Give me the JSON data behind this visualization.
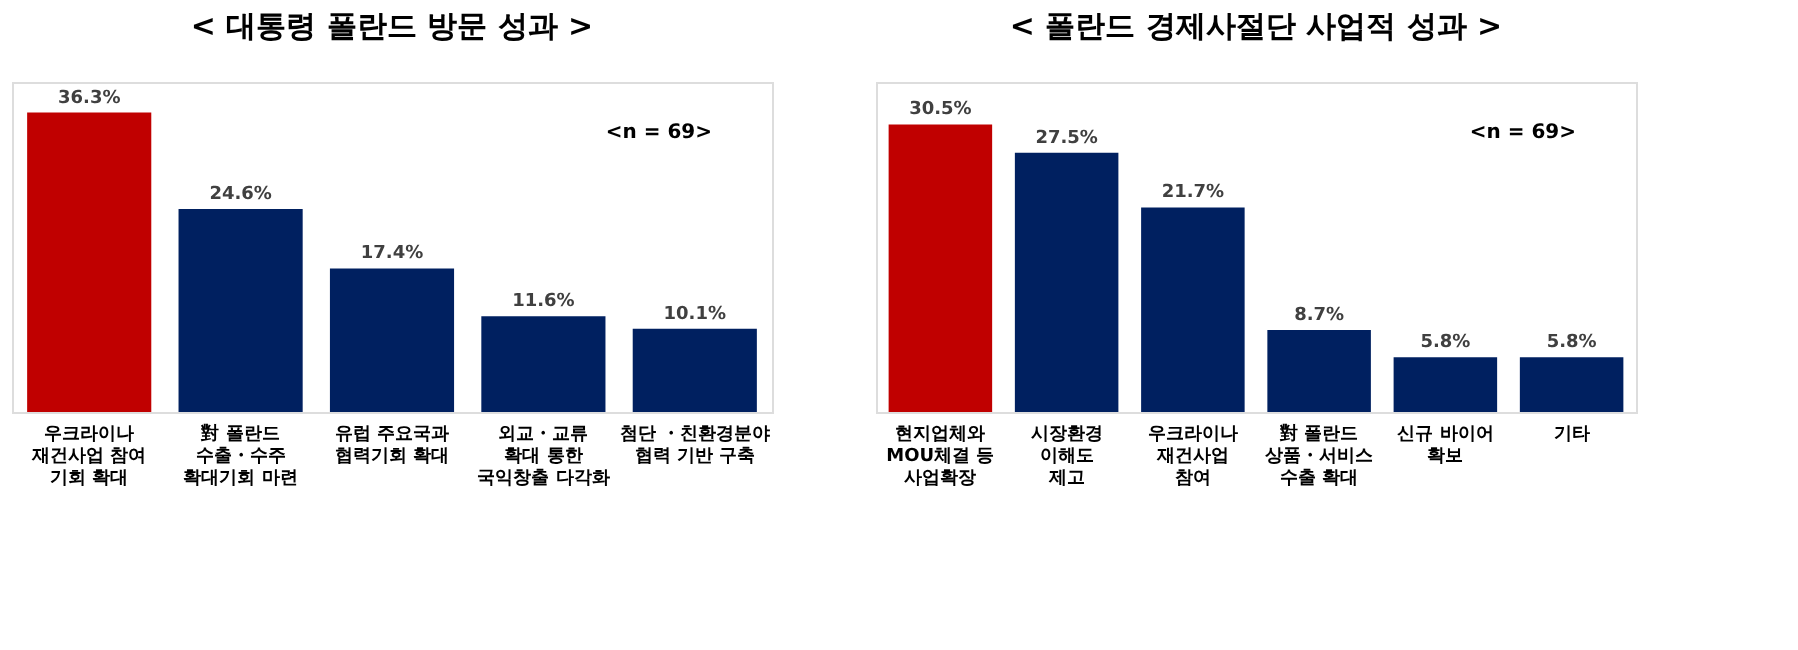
{
  "chart_data": [
    {
      "type": "bar",
      "title": "< 대통령 폴란드 방문 성과 >",
      "categories": [
        "우크라이나\n재건사업 참여\n기회 확대",
        "對 폴란드\n수출・수주\n확대기회 마련",
        "유럽 주요국과\n협력기회 확대",
        "외교・교류\n확대 통한\n국익창출 다각화",
        "첨단 ・친환경분야\n협력 기반 구축"
      ],
      "values": [
        36.3,
        24.6,
        17.4,
        11.6,
        10.1
      ],
      "value_labels": [
        "36.3%",
        "24.6%",
        "17.4%",
        "11.6%",
        "10.1%"
      ],
      "colors": [
        "#c00000",
        "#002060",
        "#002060",
        "#002060",
        "#002060"
      ],
      "annotations": [
        "<n = 69>"
      ]
    },
    {
      "type": "bar",
      "title": "< 폴란드 경제사절단 사업적 성과 >",
      "categories": [
        "현지업체와\nMOU체결 등\n사업확장",
        "시장환경\n이해도\n제고",
        "우크라이나\n재건사업\n참여",
        "對 폴란드\n상품・서비스\n수출 확대",
        "신규 바이어\n확보",
        "기타"
      ],
      "values": [
        30.5,
        27.5,
        21.7,
        8.7,
        5.8,
        5.8
      ],
      "value_labels": [
        "30.5%",
        "27.5%",
        "21.7%",
        "8.7%",
        "5.8%",
        "5.8%"
      ],
      "colors": [
        "#c00000",
        "#002060",
        "#002060",
        "#002060",
        "#002060",
        "#002060"
      ],
      "annotations": [
        "<n = 69>"
      ]
    }
  ]
}
